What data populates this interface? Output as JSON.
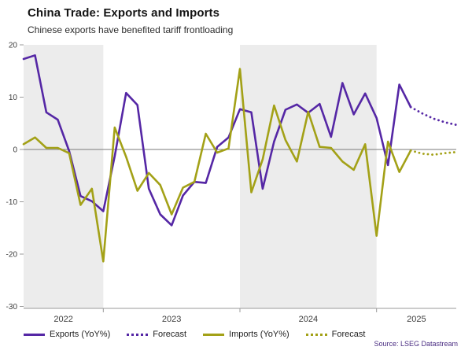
{
  "page": {
    "title": "China Trade: Exports and Imports",
    "subtitle": "Chinese exports have benefited tariff frontloading",
    "source": "Source: LSEG Datastream",
    "source_color": "#4b2e83"
  },
  "legend": [
    {
      "label": "Exports (YoY%)",
      "style": "solid",
      "color": "#5527a5"
    },
    {
      "label": "Forecast",
      "style": "dotted",
      "color": "#5527a5"
    },
    {
      "label": "Imports (YoY%)",
      "style": "solid",
      "color": "#a3a117"
    },
    {
      "label": "Forecast",
      "style": "dotted",
      "color": "#a3a117"
    }
  ],
  "chart_data": {
    "type": "line",
    "title": "China Trade: Exports and Imports",
    "subtitle": "Chinese exports have benefited tariff frontloading",
    "xlabel": "",
    "ylabel": "",
    "ylim": [
      -30,
      20
    ],
    "yticks": [
      20,
      10,
      0,
      -10,
      -20,
      -30
    ],
    "grid": false,
    "legend_position": "bottom",
    "x_year_labels": [
      "2022",
      "2023",
      "2024",
      "2025"
    ],
    "year_boundary_indices": [
      7,
      19,
      31
    ],
    "shaded_bands": [
      {
        "year": "2022",
        "from_index": 0,
        "to_index": 7
      },
      {
        "year": "2024",
        "from_index": 19,
        "to_index": 31
      }
    ],
    "colors": {
      "exports": "#5527a5",
      "imports": "#a3a117",
      "band": "#ececec",
      "zero_line": "#7a7a7a",
      "axis": "#9a9a9a",
      "tick_text": "#3d3d3d"
    },
    "months": [
      "Jun 2022",
      "Jul 2022",
      "Aug 2022",
      "Sep 2022",
      "Oct 2022",
      "Nov 2022",
      "Dec 2022",
      "Jan 2023",
      "Feb 2023",
      "Mar 2023",
      "Apr 2023",
      "May 2023",
      "Jun 2023",
      "Jul 2023",
      "Aug 2023",
      "Sep 2023",
      "Oct 2023",
      "Nov 2023",
      "Dec 2023",
      "Jan 2024",
      "Feb 2024",
      "Mar 2024",
      "Apr 2024",
      "May 2024",
      "Jun 2024",
      "Jul 2024",
      "Aug 2024",
      "Sep 2024",
      "Oct 2024",
      "Nov 2024",
      "Dec 2024",
      "Jan 2025",
      "Feb 2025",
      "Mar 2025",
      "Apr 2025",
      "May 2025",
      "Jun 2025",
      "Jul 2025",
      "Aug 2025"
    ],
    "series": [
      {
        "name": "Exports (YoY%)",
        "style": "solid",
        "color": "#5527a5",
        "values": [
          17.3,
          18.0,
          7.1,
          5.7,
          -0.3,
          -8.9,
          -9.9,
          -11.8,
          -1.3,
          10.8,
          8.5,
          -7.5,
          -12.4,
          -14.5,
          -8.8,
          -6.2,
          -6.4,
          0.5,
          2.3,
          7.7,
          7.1,
          -7.5,
          1.5,
          7.6,
          8.6,
          7.0,
          8.7,
          2.4,
          12.7,
          6.7,
          10.7,
          6.0,
          -3.0,
          12.4,
          8.1,
          null,
          null,
          null,
          null
        ]
      },
      {
        "name": "Exports Forecast",
        "style": "dotted",
        "color": "#5527a5",
        "values": [
          null,
          null,
          null,
          null,
          null,
          null,
          null,
          null,
          null,
          null,
          null,
          null,
          null,
          null,
          null,
          null,
          null,
          null,
          null,
          null,
          null,
          null,
          null,
          null,
          null,
          null,
          null,
          null,
          null,
          null,
          null,
          null,
          null,
          null,
          8.1,
          6.9,
          5.9,
          5.2,
          4.7
        ]
      },
      {
        "name": "Imports (YoY%)",
        "style": "solid",
        "color": "#a3a117",
        "values": [
          1.0,
          2.3,
          0.3,
          0.3,
          -0.7,
          -10.6,
          -7.5,
          -21.4,
          4.2,
          -1.4,
          -7.9,
          -4.5,
          -6.8,
          -12.4,
          -7.3,
          -6.2,
          3.0,
          -0.6,
          0.2,
          15.4,
          -8.2,
          -1.9,
          8.4,
          1.8,
          -2.3,
          7.2,
          0.5,
          0.3,
          -2.3,
          -3.9,
          1.0,
          -16.5,
          1.5,
          -4.3,
          -0.2,
          null,
          null,
          null,
          null
        ]
      },
      {
        "name": "Imports Forecast",
        "style": "dotted",
        "color": "#a3a117",
        "values": [
          null,
          null,
          null,
          null,
          null,
          null,
          null,
          null,
          null,
          null,
          null,
          null,
          null,
          null,
          null,
          null,
          null,
          null,
          null,
          null,
          null,
          null,
          null,
          null,
          null,
          null,
          null,
          null,
          null,
          null,
          null,
          null,
          null,
          null,
          -0.2,
          -0.8,
          -1.0,
          -0.7,
          -0.5
        ]
      }
    ]
  }
}
